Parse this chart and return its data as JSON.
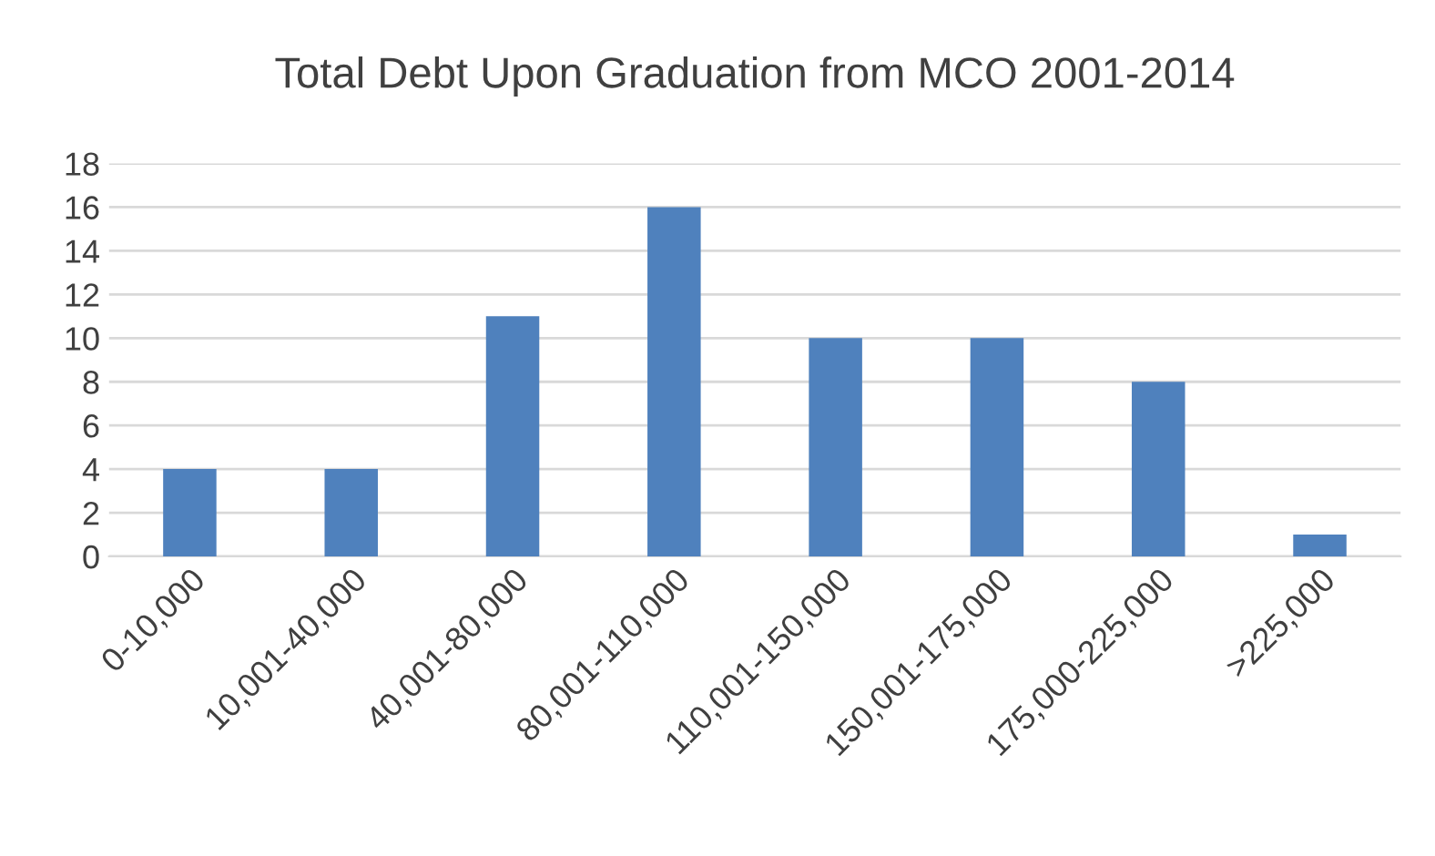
{
  "chart_data": {
    "type": "bar",
    "title": "Total Debt Upon Graduation from MCO 2001-2014",
    "categories": [
      "0-10,000",
      "10,001-40,000",
      "40,001-80,000",
      "80,001-110,000",
      "110,001-150,000",
      "150,001-175,000",
      "175,000-225,000",
      ">225,000"
    ],
    "values": [
      4,
      4,
      11,
      16,
      10,
      10,
      8,
      1
    ],
    "color": "#4f81bd",
    "ylim": [
      0,
      18
    ],
    "yticks": [
      0,
      2,
      4,
      6,
      8,
      10,
      12,
      14,
      16,
      18
    ],
    "grid": "y"
  }
}
